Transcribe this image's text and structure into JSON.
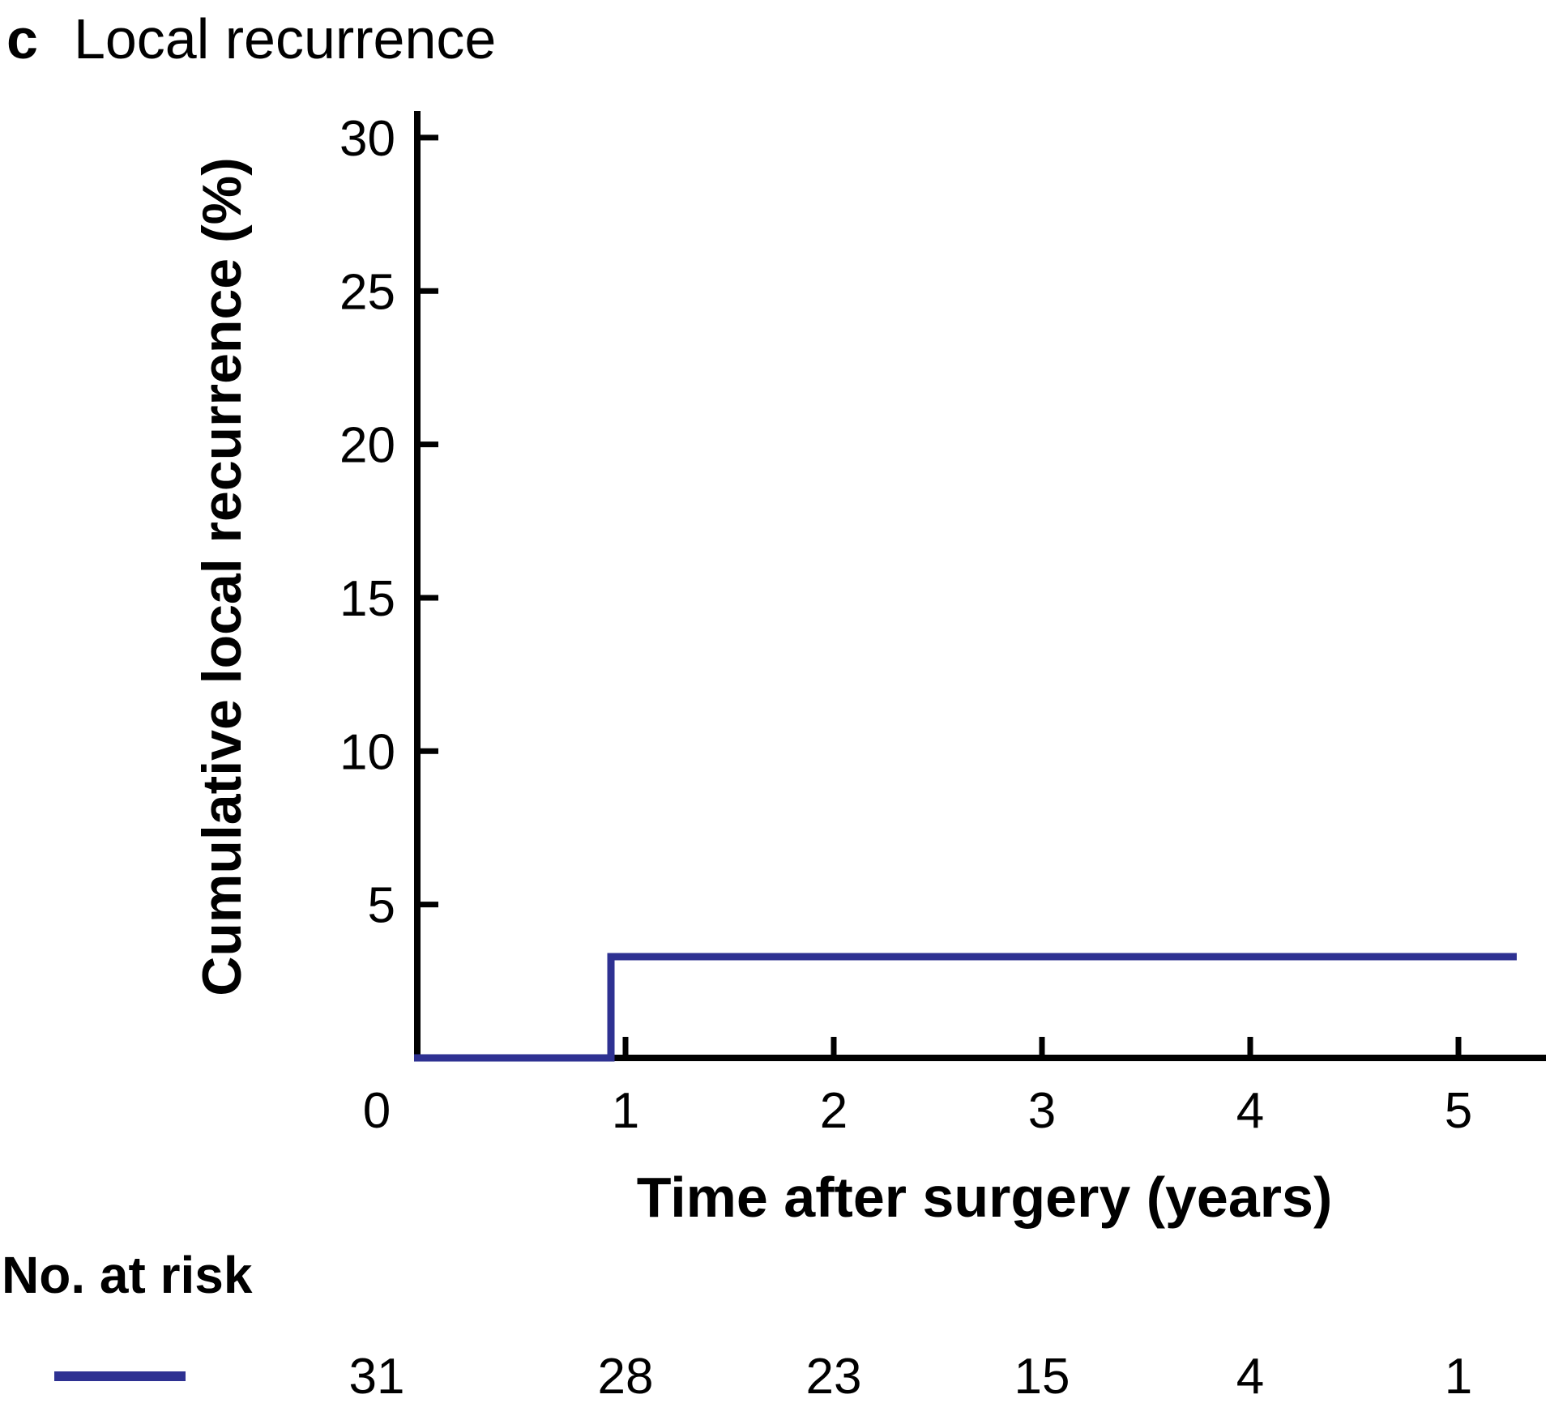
{
  "panel": {
    "label": "c",
    "title": "Local recurrence"
  },
  "chart_data": {
    "type": "line",
    "subtype": "step-cumulative-incidence",
    "title": "Local recurrence",
    "xlabel": "Time after surgery (years)",
    "ylabel": "Cumulative local recurrence (%)",
    "xlim": [
      0,
      5.42
    ],
    "ylim": [
      0,
      30.9
    ],
    "x_ticks": [
      0,
      1,
      2,
      3,
      4,
      5
    ],
    "y_ticks": [
      5,
      10,
      15,
      20,
      25,
      30
    ],
    "grid": false,
    "legend_position": "bottom-left",
    "series": [
      {
        "color": "#2e3192",
        "step": true,
        "points": [
          [
            0,
            0
          ],
          [
            0.93,
            0
          ],
          [
            0.93,
            3.3
          ],
          [
            5.28,
            3.3
          ]
        ]
      }
    ],
    "at_risk": {
      "label": "No. at risk",
      "times": [
        0,
        1,
        2,
        3,
        4,
        5
      ],
      "values": [
        31,
        28,
        23,
        15,
        4,
        1
      ]
    }
  },
  "colors": {
    "line": "#2e3192",
    "axis": "#000000",
    "text": "#000000",
    "background": "#ffffff"
  }
}
